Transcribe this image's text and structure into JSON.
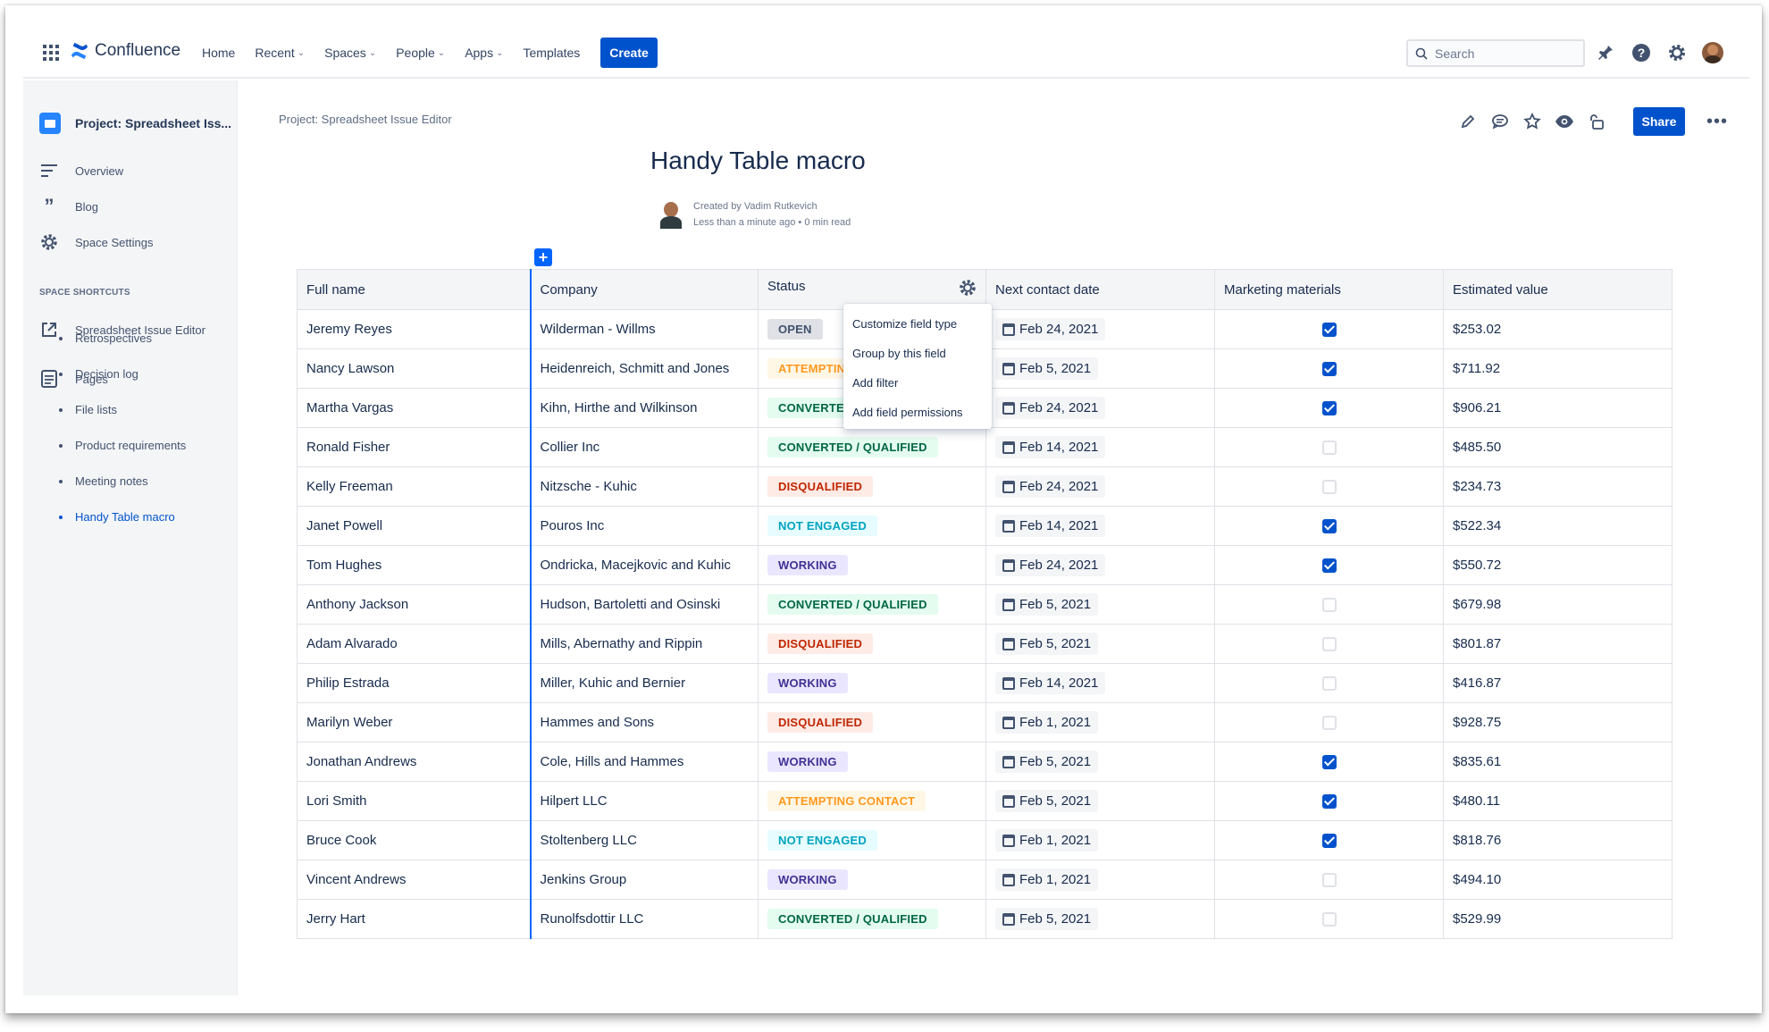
{
  "topnav": {
    "app_name": "Confluence",
    "items": [
      {
        "label": "Home",
        "dropdown": false
      },
      {
        "label": "Recent",
        "dropdown": true
      },
      {
        "label": "Spaces",
        "dropdown": true
      },
      {
        "label": "People",
        "dropdown": true
      },
      {
        "label": "Apps",
        "dropdown": true
      },
      {
        "label": "Templates",
        "dropdown": false
      }
    ],
    "create_label": "Create",
    "search_placeholder": "Search"
  },
  "sidebar": {
    "space_title": "Project: Spreadsheet Iss...",
    "links": [
      "Overview",
      "Blog",
      "Space Settings"
    ],
    "shortcuts_heading": "SPACE SHORTCUTS",
    "shortcut": "Spreadsheet Issue Editor",
    "pages_label": "Pages",
    "pages": [
      "Retrospectives",
      "Decision log",
      "File lists",
      "Product requirements",
      "Meeting notes",
      "Handy Table macro"
    ],
    "active_page": "Handy Table macro"
  },
  "page": {
    "breadcrumb": "Project: Spreadsheet Issue Editor",
    "title": "Handy Table macro",
    "created_by": "Created by Vadim Rutkevich",
    "meta": "Less than a minute ago • 0 min read",
    "share_label": "Share"
  },
  "table": {
    "headers": [
      "Full name",
      "Company",
      "Status",
      "Next contact date",
      "Marketing materials",
      "Estimated value"
    ],
    "rows": [
      {
        "name": "Jeremy Reyes",
        "company": "Wilderman - Willms",
        "status": "OPEN",
        "date": "Feb 24, 2021",
        "marketing": true,
        "value": "$253.02"
      },
      {
        "name": "Nancy Lawson",
        "company": "Heidenreich, Schmitt and Jones",
        "status": "ATTEMPTING CONTACT",
        "date": "Feb 5, 2021",
        "marketing": true,
        "value": "$711.92"
      },
      {
        "name": "Martha Vargas",
        "company": "Kihn, Hirthe and Wilkinson",
        "status": "CONVERTED / QUALIFIED",
        "date": "Feb 24, 2021",
        "marketing": true,
        "value": "$906.21"
      },
      {
        "name": "Ronald Fisher",
        "company": "Collier Inc",
        "status": "CONVERTED / QUALIFIED",
        "date": "Feb 14, 2021",
        "marketing": false,
        "value": "$485.50"
      },
      {
        "name": "Kelly Freeman",
        "company": "Nitzsche - Kuhic",
        "status": "DISQUALIFIED",
        "date": "Feb 24, 2021",
        "marketing": false,
        "value": "$234.73"
      },
      {
        "name": "Janet Powell",
        "company": "Pouros Inc",
        "status": "NOT ENGAGED",
        "date": "Feb 14, 2021",
        "marketing": true,
        "value": "$522.34"
      },
      {
        "name": "Tom Hughes",
        "company": "Ondricka, Macejkovic and Kuhic",
        "status": "WORKING",
        "date": "Feb 24, 2021",
        "marketing": true,
        "value": "$550.72"
      },
      {
        "name": "Anthony Jackson",
        "company": "Hudson, Bartoletti and Osinski",
        "status": "CONVERTED / QUALIFIED",
        "date": "Feb 5, 2021",
        "marketing": false,
        "value": "$679.98"
      },
      {
        "name": "Adam Alvarado",
        "company": "Mills, Abernathy and Rippin",
        "status": "DISQUALIFIED",
        "date": "Feb 5, 2021",
        "marketing": false,
        "value": "$801.87"
      },
      {
        "name": "Philip Estrada",
        "company": "Miller, Kuhic and Bernier",
        "status": "WORKING",
        "date": "Feb 14, 2021",
        "marketing": false,
        "value": "$416.87"
      },
      {
        "name": "Marilyn Weber",
        "company": "Hammes and Sons",
        "status": "DISQUALIFIED",
        "date": "Feb 1, 2021",
        "marketing": false,
        "value": "$928.75"
      },
      {
        "name": "Jonathan Andrews",
        "company": "Cole, Hills and Hammes",
        "status": "WORKING",
        "date": "Feb 5, 2021",
        "marketing": true,
        "value": "$835.61"
      },
      {
        "name": "Lori Smith",
        "company": "Hilpert LLC",
        "status": "ATTEMPTING CONTACT",
        "date": "Feb 5, 2021",
        "marketing": true,
        "value": "$480.11"
      },
      {
        "name": "Bruce Cook",
        "company": "Stoltenberg LLC",
        "status": "NOT ENGAGED",
        "date": "Feb 1, 2021",
        "marketing": true,
        "value": "$818.76"
      },
      {
        "name": "Vincent Andrews",
        "company": "Jenkins Group",
        "status": "WORKING",
        "date": "Feb 1, 2021",
        "marketing": false,
        "value": "$494.10"
      },
      {
        "name": "Jerry Hart",
        "company": "Runolfsdottir LLC",
        "status": "CONVERTED / QUALIFIED",
        "date": "Feb 5, 2021",
        "marketing": false,
        "value": "$529.99"
      }
    ]
  },
  "context_menu": {
    "items": [
      "Customize field type",
      "Group by this field",
      "Add filter",
      "Add field permissions"
    ]
  },
  "colors": {
    "primary": "#0052cc",
    "accent_line": "#0065ff"
  }
}
